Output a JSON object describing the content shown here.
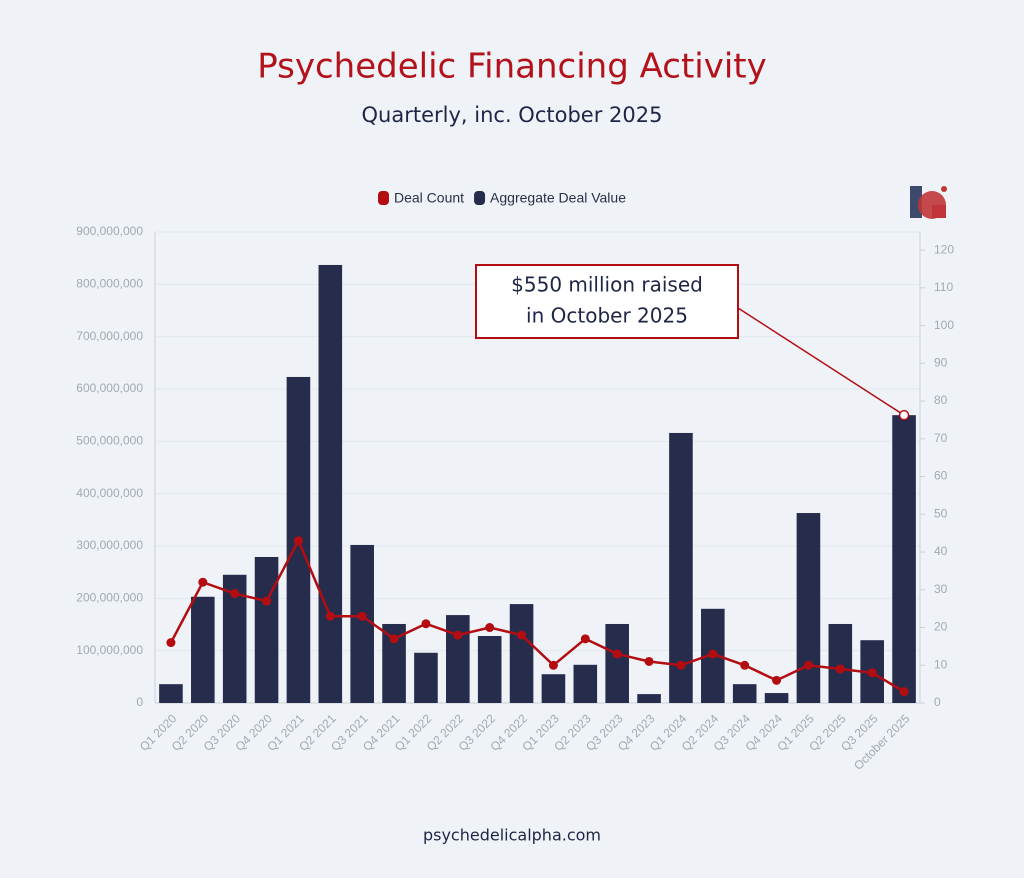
{
  "chart_data": {
    "type": "bar",
    "title": "Psychedelic Financing Activity",
    "subtitle": "Quarterly, inc. October 2025",
    "footer": "psychedelicalpha.com",
    "annotation": {
      "lines": [
        "$550 million raised",
        "in October 2025"
      ]
    },
    "categories": [
      "Q1 2020",
      "Q2 2020",
      "Q3 2020",
      "Q4 2020",
      "Q1 2021",
      "Q2 2021",
      "Q3 2021",
      "Q4 2021",
      "Q1 2022",
      "Q2 2022",
      "Q3 2022",
      "Q4 2022",
      "Q1 2023",
      "Q2 2023",
      "Q3 2023",
      "Q4 2023",
      "Q1 2024",
      "Q2 2024",
      "Q3 2024",
      "Q4 2024",
      "Q1 2025",
      "Q2 2025",
      "Q3 2025",
      "October 2025"
    ],
    "series": [
      {
        "name": "Deal Count",
        "type": "line",
        "axis": "y2",
        "color": "#b30d12",
        "values": [
          16,
          32,
          29,
          27,
          43,
          23,
          23,
          17,
          21,
          18,
          20,
          18,
          10,
          17,
          13,
          11,
          10,
          13,
          10,
          6,
          10,
          9,
          8,
          3
        ]
      },
      {
        "name": "Aggregate Deal Value",
        "type": "bar",
        "color": "#262c4b",
        "values": [
          36000000,
          203000000,
          245000000,
          279000000,
          623000000,
          837000000,
          302000000,
          151000000,
          96000000,
          168000000,
          128000000,
          189000000,
          55000000,
          73000000,
          151000000,
          17000000,
          516000000,
          180000000,
          36000000,
          19000000,
          363000000,
          151000000,
          120000000,
          550000000
        ]
      }
    ],
    "ylim": [
      0,
      900000000
    ],
    "yticks": [
      0,
      {
        "value": 100000000,
        "label": "100,000,000"
      },
      {
        "value": 200000000,
        "label": "200,000,000"
      },
      {
        "value": 300000000,
        "label": "300,000,000"
      },
      {
        "value": 400000000,
        "label": "400,000,000"
      },
      {
        "value": 500000000,
        "label": "500,000,000"
      },
      {
        "value": 600000000,
        "label": "600,000,000"
      },
      {
        "value": 700000000,
        "label": "700,000,000"
      },
      {
        "value": 800000000,
        "label": "800,000,000"
      },
      {
        "value": 900000000,
        "label": "900,000,000"
      }
    ],
    "y2lim": [
      0,
      124.8
    ],
    "y2ticks": [
      0,
      10,
      20,
      30,
      40,
      50,
      60,
      70,
      80,
      90,
      100,
      110,
      120
    ],
    "grid": true
  }
}
